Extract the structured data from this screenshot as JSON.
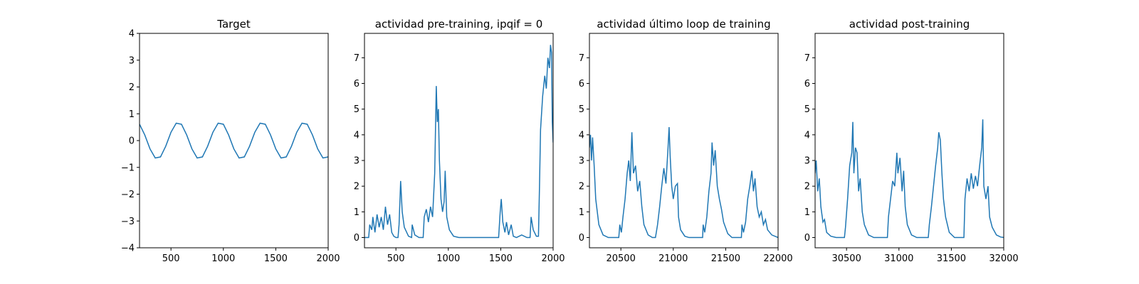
{
  "chart_data": [
    {
      "type": "line",
      "title": "Target",
      "color": "#1f77b4",
      "x": [
        200,
        250,
        300,
        350,
        400,
        450,
        500,
        550,
        600,
        650,
        700,
        750,
        800,
        850,
        900,
        950,
        1000,
        1050,
        1100,
        1150,
        1200,
        1250,
        1300,
        1350,
        1400,
        1450,
        1500,
        1550,
        1600,
        1650,
        1700,
        1750,
        1800,
        1850,
        1900,
        1950,
        2000
      ],
      "values": [
        0.61,
        0.21,
        -0.31,
        -0.65,
        -0.61,
        -0.21,
        0.31,
        0.65,
        0.61,
        0.21,
        -0.31,
        -0.65,
        -0.61,
        -0.21,
        0.31,
        0.65,
        0.61,
        0.21,
        -0.31,
        -0.65,
        -0.61,
        -0.21,
        0.31,
        0.65,
        0.61,
        0.21,
        -0.31,
        -0.65,
        -0.61,
        -0.21,
        0.31,
        0.65,
        0.61,
        0.21,
        -0.31,
        -0.65,
        -0.61
      ],
      "xlim": [
        200,
        2000
      ],
      "xticks": [
        500,
        1000,
        1500,
        2000
      ],
      "ylim": [
        -4,
        4
      ],
      "yticks": [
        {
          "value": -4,
          "label": "−4"
        },
        {
          "value": -3,
          "label": "−3"
        },
        {
          "value": -2,
          "label": "−2"
        },
        {
          "value": -1,
          "label": "−1"
        },
        0,
        1,
        2,
        3,
        4
      ]
    },
    {
      "type": "line",
      "title": "actividad pre-training, ipqif = 0",
      "color": "#1f77b4",
      "x": [
        200,
        240,
        250,
        270,
        280,
        300,
        320,
        340,
        360,
        380,
        400,
        420,
        440,
        460,
        480,
        500,
        520,
        530,
        545,
        560,
        580,
        620,
        650,
        655,
        680,
        720,
        760,
        770,
        790,
        810,
        830,
        850,
        870,
        885,
        895,
        905,
        915,
        930,
        945,
        960,
        970,
        985,
        1010,
        1050,
        1100,
        1480,
        1495,
        1505,
        1520,
        1540,
        1555,
        1575,
        1600,
        1620,
        1650,
        1700,
        1750,
        1780,
        1790,
        1810,
        1840,
        1860,
        1870,
        1880,
        1900,
        1920,
        1935,
        1950,
        1965,
        1975,
        1985,
        1992,
        2000
      ],
      "values": [
        0,
        0,
        0.5,
        0.3,
        0.8,
        0.2,
        0.9,
        0.4,
        0.8,
        0.3,
        1.2,
        0.5,
        0.9,
        0.2,
        0.05,
        0,
        0,
        0.5,
        2.2,
        1.0,
        0.4,
        0.05,
        0,
        0.5,
        0.1,
        0,
        0,
        0.8,
        1.1,
        0.6,
        1.2,
        0.8,
        2.5,
        5.9,
        4.5,
        5.0,
        3.0,
        1.5,
        1.0,
        1.4,
        2.6,
        0.8,
        0.3,
        0.05,
        0,
        0,
        1.0,
        1.5,
        0.6,
        0.2,
        0.6,
        0.1,
        0.5,
        0.05,
        0,
        0.1,
        0,
        0,
        0.8,
        0.3,
        0.05,
        0.05,
        2.0,
        4.2,
        5.5,
        6.3,
        5.8,
        7.0,
        6.6,
        7.5,
        7.2,
        4.5,
        3.7
      ],
      "xlim": [
        200,
        2000
      ],
      "xticks": [
        500,
        1000,
        1500,
        2000
      ],
      "ylim": [
        -0.4,
        7.95
      ],
      "yticks": [
        0,
        1,
        2,
        3,
        4,
        5,
        6,
        7
      ]
    },
    {
      "type": "line",
      "title": "actividad último loop de training",
      "color": "#1f77b4",
      "x": [
        20200,
        20210,
        20220,
        20230,
        20245,
        20260,
        20290,
        20330,
        20380,
        20480,
        20490,
        20505,
        20520,
        20540,
        20560,
        20575,
        20590,
        20605,
        20620,
        20640,
        20660,
        20680,
        20700,
        20720,
        20760,
        20800,
        20830,
        20850,
        20870,
        20890,
        20910,
        20930,
        20950,
        20960,
        20970,
        20985,
        21000,
        21020,
        21040,
        21050,
        21070,
        21110,
        21150,
        21280,
        21285,
        21300,
        21320,
        21340,
        21360,
        21370,
        21385,
        21400,
        21420,
        21440,
        21460,
        21480,
        21520,
        21560,
        21650,
        21655,
        21670,
        21690,
        21710,
        21730,
        21750,
        21765,
        21780,
        21800,
        21820,
        21840,
        21860,
        21880,
        21900,
        21940,
        22000
      ],
      "values": [
        3.5,
        4.0,
        3.0,
        3.9,
        2.8,
        1.5,
        0.5,
        0.1,
        0,
        0,
        0.5,
        0.2,
        0.8,
        1.5,
        2.5,
        3.0,
        2.2,
        4.1,
        2.5,
        2.8,
        1.8,
        2.2,
        1.2,
        0.5,
        0.1,
        0,
        0,
        0.5,
        1.2,
        2.0,
        2.7,
        2.1,
        3.5,
        4.3,
        3.2,
        2.0,
        1.5,
        2.0,
        2.1,
        0.8,
        0.3,
        0.05,
        0,
        0,
        0.5,
        0.2,
        0.8,
        1.8,
        2.5,
        3.7,
        2.8,
        3.4,
        2.0,
        1.5,
        1.1,
        0.6,
        0.15,
        0,
        0,
        0.5,
        0.2,
        0.6,
        1.5,
        2.0,
        2.6,
        1.8,
        2.3,
        1.2,
        0.8,
        1.0,
        0.5,
        0.7,
        0.3,
        0.1,
        0
      ],
      "xlim": [
        20200,
        22000
      ],
      "xticks": [
        20500,
        21000,
        21500,
        22000
      ],
      "ylim": [
        -0.4,
        7.95
      ],
      "yticks": [
        0,
        1,
        2,
        3,
        4,
        5,
        6,
        7
      ]
    },
    {
      "type": "line",
      "title": "actividad post-training",
      "color": "#1f77b4",
      "x": [
        30200,
        30210,
        30225,
        30240,
        30255,
        30275,
        30290,
        30310,
        30350,
        30400,
        30480,
        30490,
        30510,
        30530,
        30550,
        30560,
        30570,
        30585,
        30600,
        30615,
        30630,
        30650,
        30670,
        30710,
        30760,
        30890,
        30900,
        30920,
        30940,
        30960,
        30980,
        30990,
        31010,
        31030,
        31045,
        31060,
        31080,
        31120,
        31170,
        31280,
        31290,
        31310,
        31330,
        31350,
        31370,
        31380,
        31395,
        31410,
        31425,
        31445,
        31480,
        31530,
        31620,
        31630,
        31650,
        31670,
        31690,
        31710,
        31730,
        31750,
        31770,
        31790,
        31800,
        31810,
        31830,
        31850,
        31865,
        31890,
        31930,
        31970,
        32000
      ],
      "values": [
        2.5,
        3.0,
        1.8,
        2.3,
        1.2,
        0.6,
        0.7,
        0.2,
        0.05,
        0,
        0,
        0.4,
        1.5,
        2.8,
        3.3,
        4.5,
        2.5,
        3.5,
        3.3,
        1.8,
        2.3,
        1.0,
        0.5,
        0.1,
        0,
        0,
        0.8,
        1.5,
        2.2,
        2.0,
        3.3,
        2.5,
        3.1,
        1.8,
        2.6,
        1.2,
        0.5,
        0.1,
        0,
        0,
        0.5,
        1.2,
        2.0,
        2.8,
        3.5,
        4.1,
        3.8,
        2.5,
        1.5,
        0.8,
        0.2,
        0,
        0,
        1.5,
        2.3,
        1.8,
        2.5,
        1.9,
        2.4,
        2.0,
        2.8,
        3.5,
        4.6,
        2.0,
        1.5,
        2.0,
        0.8,
        0.4,
        0.1,
        0.02,
        0
      ],
      "xlim": [
        30200,
        32000
      ],
      "xticks": [
        30500,
        31000,
        31500,
        32000
      ],
      "ylim": [
        -0.4,
        7.95
      ],
      "yticks": [
        0,
        1,
        2,
        3,
        4,
        5,
        6,
        7
      ]
    }
  ]
}
